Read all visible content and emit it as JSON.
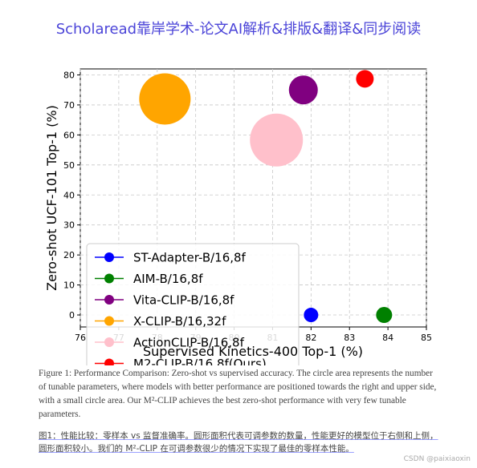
{
  "header": {
    "title": "Scholaread靠岸学术-论文AI解析&排版&翻译&同步阅读"
  },
  "chart_data": {
    "type": "scatter",
    "xlabel": "Supervised Kinetics-400 Top-1 (%)",
    "ylabel": "Zero-shot UCF-101 Top-1 (%)",
    "xlim": [
      76,
      85
    ],
    "ylim": [
      -4,
      82
    ],
    "xticks": [
      "76",
      "77",
      "78",
      "79",
      "80",
      "81",
      "82",
      "83",
      "84",
      "85"
    ],
    "yticks": [
      "0",
      "10",
      "20",
      "30",
      "40",
      "50",
      "60",
      "70",
      "80"
    ],
    "grid": true,
    "legend_position": "lower-left",
    "series": [
      {
        "name": "ST-Adapter-B/16,8f",
        "color": "#0000ff",
        "x": 82.0,
        "y": 0,
        "size": 9
      },
      {
        "name": "AIM-B/16,8f",
        "color": "#008000",
        "x": 83.9,
        "y": 0,
        "size": 10
      },
      {
        "name": "Vita-CLIP-B/16,8f",
        "color": "#800080",
        "x": 81.8,
        "y": 75,
        "size": 18
      },
      {
        "name": "X-CLIP-B/16,32f",
        "color": "#ffa500",
        "x": 78.2,
        "y": 72,
        "size": 32
      },
      {
        "name": "ActionCLIP-B/16,8f",
        "color": "#ffc0cb",
        "x": 81.1,
        "y": 58.3,
        "size": 33
      },
      {
        "name": "M2-CLIP-B/16,8f(Ours)",
        "color": "#ff0000",
        "x": 83.4,
        "y": 78.7,
        "size": 11
      }
    ]
  },
  "caption_en": "Figure 1: Performance Comparison: Zero-shot vs supervised accuracy. The circle area represents the number of tunable parameters, where models with better performance are positioned towards the right and upper side, with a small circle area. Our M²-CLIP achieves the best zero-shot performance with very few tunable parameters.",
  "caption_zh": "图1：性能比较：零样本 vs 监督准确率。圆形面积代表可调参数的数量，性能更好的模型位于右侧和上侧，圆形面积较小。我们的 M²-CLIP 在可调参数很少的情况下实现了最佳的零样本性能。",
  "watermark": "CSDN @paixiaoxin"
}
